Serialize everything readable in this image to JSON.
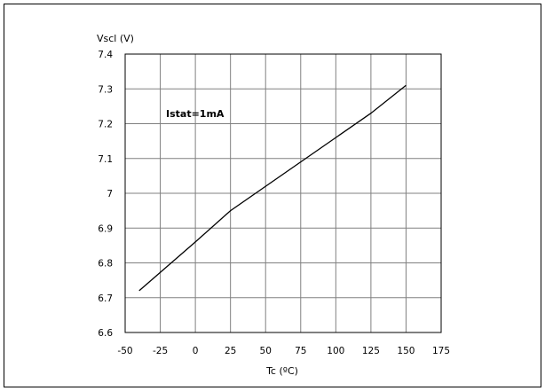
{
  "chart_data": {
    "type": "line",
    "title": "",
    "xlabel": "Tc (ºC)",
    "ylabel": "Vscl (V)",
    "xlim": [
      -50,
      175
    ],
    "ylim": [
      6.6,
      7.4
    ],
    "xticks": [
      -50,
      -25,
      0,
      25,
      50,
      75,
      100,
      125,
      150,
      175
    ],
    "yticks": [
      6.6,
      6.7,
      6.8,
      6.9,
      7.0,
      7.1,
      7.2,
      7.3,
      7.4
    ],
    "xtick_labels": [
      "-50",
      "-25",
      "0",
      "25",
      "50",
      "75",
      "100",
      "125",
      "150",
      "175"
    ],
    "ytick_labels": [
      "6.6",
      "6.7",
      "6.8",
      "6.9",
      "7",
      "7.1",
      "7.2",
      "7.3",
      "7.4"
    ],
    "grid": true,
    "annotation": "Istat=1mA",
    "series": [
      {
        "x": [
          -40,
          0,
          25,
          125,
          150
        ],
        "y": [
          6.72,
          6.86,
          6.95,
          7.23,
          7.31
        ]
      }
    ],
    "line_color": "#000000",
    "grid_color": "#808080"
  }
}
